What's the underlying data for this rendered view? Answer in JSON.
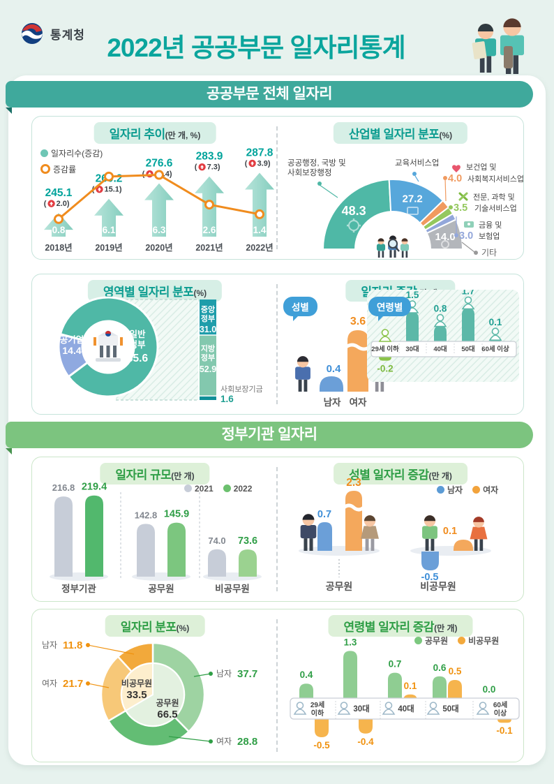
{
  "header": {
    "agency": "통계청",
    "title": "2022년 공공부문 일자리통계"
  },
  "banners": [
    {
      "label": "공공부문 전체 일자리",
      "color": "#3fa99c"
    },
    {
      "label": "정부기관 일자리",
      "color": "#7cc47f"
    }
  ],
  "panels": {
    "trend": {
      "title": "일자리 추이",
      "unit": "(만 개, %)",
      "legend": [
        {
          "label": "일자리수(증감)"
        },
        {
          "label": "증감률"
        }
      ]
    },
    "industry": {
      "title": "산업별 일자리 분포",
      "unit": "(%)"
    },
    "domain": {
      "title": "영역별 일자리 분포",
      "unit": "(%)"
    },
    "change": {
      "title": "일자리 증감",
      "unit": "(만 개)",
      "bubble_gender": "성별",
      "bubble_age": "연령별"
    },
    "scale": {
      "title": "일자리 규모",
      "unit": "(만 개)",
      "legend": [
        "2021",
        "2022"
      ]
    },
    "gender_change": {
      "title": "성별 일자리 증감",
      "unit": "(만 개)",
      "legend": [
        "남자",
        "여자"
      ]
    },
    "dist": {
      "title": "일자리 분포",
      "unit": "(%)"
    },
    "age_change": {
      "title": "연령별 일자리 증감",
      "unit": "(만 개)",
      "legend": [
        "공무원",
        "비공무원"
      ]
    }
  },
  "chart_data": [
    {
      "id": "trend",
      "type": "bar+line",
      "title": "일자리 추이(만 개, %)",
      "categories": [
        "2018년",
        "2019년",
        "2020년",
        "2021년",
        "2022년"
      ],
      "series": [
        {
          "name": "일자리수(증감)",
          "values": [
            245.1,
            260.2,
            276.6,
            283.9,
            287.8
          ]
        },
        {
          "name": "증감",
          "values": [
            2.0,
            15.1,
            16.4,
            7.3,
            3.9
          ]
        },
        {
          "name": "증감률",
          "values": [
            0.8,
            6.1,
            6.3,
            2.6,
            1.4
          ]
        }
      ],
      "bar_color": "#93d4c7",
      "line_color": "#f08c1e",
      "value_color": "#00a39b"
    },
    {
      "id": "industry",
      "type": "pie",
      "half": true,
      "title": "산업별 일자리 분포(%)",
      "slices": [
        {
          "label": "공공행정, 국방 및 사회보장행정",
          "label_lines": [
            "공공행정, 국방 및",
            "사회보장행정"
          ],
          "value": 48.3,
          "color": "#4fb8a6",
          "icon": "gear-icon"
        },
        {
          "label": "교육서비스업",
          "label_lines": [
            "교육서비스업"
          ],
          "value": 27.2,
          "color": "#57a7db",
          "icon": "book-icon"
        },
        {
          "label": "보건업 및 사회복지서비스업",
          "label_lines": [
            "보건업 및",
            "사회복지서비스업"
          ],
          "value": 4.0,
          "color": "#f09a5f",
          "icon": "hand-heart-icon"
        },
        {
          "label": "전문, 과학 및 기술서비스업",
          "label_lines": [
            "전문, 과학 및",
            "기술서비스업"
          ],
          "value": 3.5,
          "color": "#94c85e",
          "icon": "tools-icon"
        },
        {
          "label": "금융 및 보험업",
          "label_lines": [
            "금융 및",
            "보험업"
          ],
          "value": 3.0,
          "color": "#93a7da",
          "icon": "money-icon"
        },
        {
          "label": "기타",
          "label_lines": [
            "기타"
          ],
          "value": 14.0,
          "color": "#b3b6bb",
          "icon": "bulb-icon"
        }
      ]
    },
    {
      "id": "domain",
      "type": "pie+bar",
      "title": "영역별 일자리 분포(%)",
      "slices": [
        {
          "label": "일반정부",
          "label_lines": [
            "일반",
            "정부"
          ],
          "value": 85.6,
          "color": "#4fb8a6"
        },
        {
          "label": "공기업",
          "value": 14.4,
          "color": "#8fa9e0"
        }
      ],
      "bar": [
        {
          "label": "중앙정부",
          "label_lines": [
            "중앙",
            "정부"
          ],
          "value": 31.0,
          "color": "#1f9daa"
        },
        {
          "label": "지방정부",
          "label_lines": [
            "지방",
            "정부"
          ],
          "value": 52.9,
          "color": "#83c8ae"
        },
        {
          "label": "사회보장기금",
          "value": 1.6,
          "color": "#0f8f98"
        }
      ]
    },
    {
      "id": "change",
      "type": "bar",
      "title": "일자리 증감(만 개)",
      "gender": [
        {
          "label": "남자",
          "value": 0.4,
          "color": "#6b9fd8",
          "value_color": "#3f8fd8"
        },
        {
          "label": "여자",
          "value": 3.6,
          "color": "#f4a85c",
          "value_color": "#f08c1e"
        }
      ],
      "age_categories": [
        "29세 이하",
        "30대",
        "40대",
        "50대",
        "60세 이상"
      ],
      "age_values": [
        -0.2,
        1.5,
        0.8,
        1.7,
        0.1
      ],
      "age_colors": [
        "#8bc34a",
        "#5cb8a8",
        "#5cb8a8",
        "#5cb8a8",
        "#5cb8a8"
      ]
    },
    {
      "id": "scale",
      "type": "bar",
      "title": "일자리 규모(만 개)",
      "categories": [
        "정부기관",
        "공무원",
        "비공무원"
      ],
      "series": [
        {
          "name": "2021",
          "values": [
            216.8,
            142.8,
            74.0
          ],
          "color": "#c7cdd8",
          "value_color": "#82878f"
        },
        {
          "name": "2022",
          "values": [
            219.4,
            145.9,
            73.6
          ],
          "colors": [
            "#52b86d",
            "#7cc67f",
            "#9bd290"
          ],
          "value_color": "#2f9e46"
        }
      ]
    },
    {
      "id": "gender_change",
      "type": "bar",
      "title": "성별 일자리 증감(만 개)",
      "categories": [
        "공무원",
        "비공무원"
      ],
      "series": [
        {
          "name": "남자",
          "values": [
            0.7,
            -0.5
          ],
          "color": "#6b9fd8",
          "value_color": "#3f8fd8"
        },
        {
          "name": "여자",
          "values": [
            2.3,
            0.1
          ],
          "color": "#f4a85c",
          "value_color": "#f08c1e"
        }
      ]
    },
    {
      "id": "dist",
      "type": "pie",
      "title": "일자리 분포(%)",
      "inner": [
        {
          "label": "공무원",
          "value": 66.5,
          "color": "#e3f1e0"
        },
        {
          "label": "비공무원",
          "value": 33.5,
          "color": "#fdeecd"
        }
      ],
      "outer": [
        {
          "label": "남자",
          "value": 37.7,
          "color": "#9ed3a2",
          "value_color": "#2f9e46"
        },
        {
          "label": "여자",
          "value": 28.8,
          "color": "#63bd74",
          "value_color": "#2f9e46"
        },
        {
          "label": "여자",
          "value": 21.7,
          "color": "#f7c878",
          "value_color": "#f0920f"
        },
        {
          "label": "남자",
          "value": 11.8,
          "color": "#f2a93b",
          "value_color": "#f0920f"
        }
      ]
    },
    {
      "id": "age_change",
      "type": "bar",
      "title": "연령별 일자리 증감(만 개)",
      "categories": [
        "29세 이하",
        "30대",
        "40대",
        "50대",
        "60세 이상"
      ],
      "category_lines": [
        [
          "29세",
          "이하"
        ],
        [
          "30대"
        ],
        [
          "40대"
        ],
        [
          "50대"
        ],
        [
          "60세",
          "이상"
        ]
      ],
      "series": [
        {
          "name": "공무원",
          "values": [
            0.4,
            1.3,
            0.7,
            0.6,
            0.0
          ],
          "color": "#8fcd92",
          "value_color": "#2f9e46"
        },
        {
          "name": "비공무원",
          "values": [
            -0.5,
            -0.4,
            0.1,
            0.5,
            -0.1
          ],
          "color": "#f6b44d",
          "value_color": "#f0920f"
        }
      ]
    }
  ]
}
